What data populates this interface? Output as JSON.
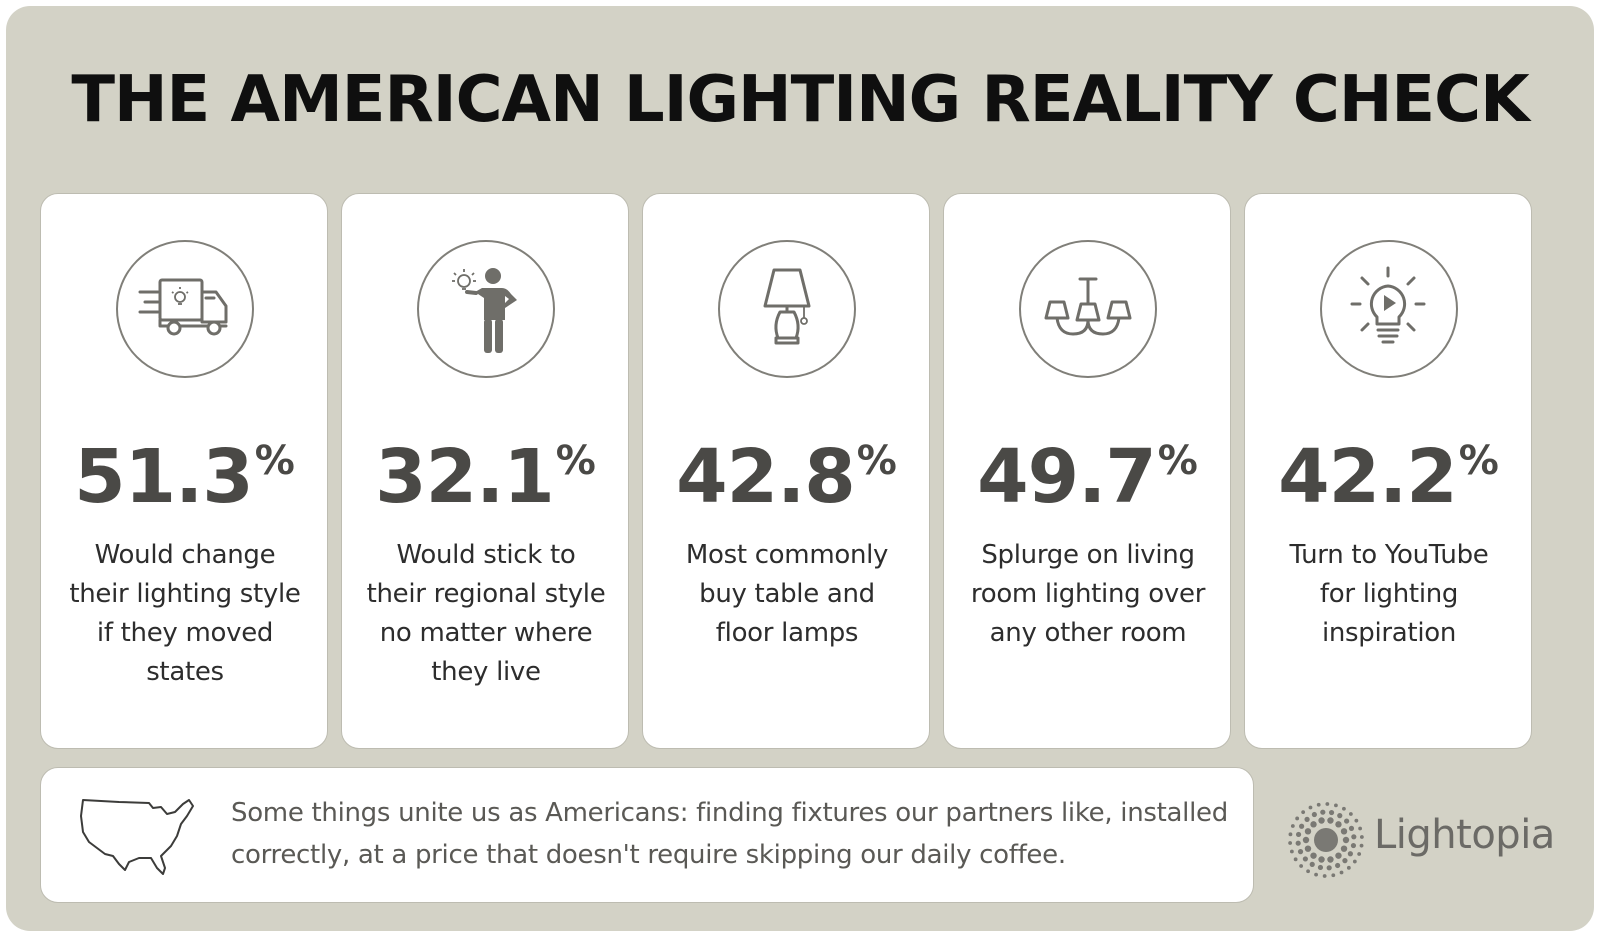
{
  "title": "THE AMERICAN LIGHTING REALITY CHECK",
  "cards": [
    {
      "icon": "delivery-truck-icon",
      "stat": "51.3",
      "unit": "%",
      "description": "Would change their lighting style if they moved states"
    },
    {
      "icon": "person-with-lightbulb-icon",
      "stat": "32.1",
      "unit": "%",
      "description": "Would stick to their regional style no matter where they live"
    },
    {
      "icon": "table-lamp-icon",
      "stat": "42.8",
      "unit": "%",
      "description": "Most commonly buy table and floor lamps"
    },
    {
      "icon": "chandelier-icon",
      "stat": "49.7",
      "unit": "%",
      "description": "Splurge on living room lighting over any other room"
    },
    {
      "icon": "lightbulb-play-icon",
      "stat": "42.2",
      "unit": "%",
      "description": "Turn to YouTube for lighting inspiration"
    }
  ],
  "footer": {
    "icon": "usa-map-icon",
    "text": "Some things unite us as Americans: finding fixtures our partners like, installed correctly, at a price that doesn't require skipping our daily coffee."
  },
  "brand": {
    "name": "Lightopia",
    "icon": "lightopia-logo-icon"
  },
  "colors": {
    "background": "#d3d2c6",
    "card": "#ffffff",
    "stat": "#4a4946",
    "icon": "#807f79"
  }
}
